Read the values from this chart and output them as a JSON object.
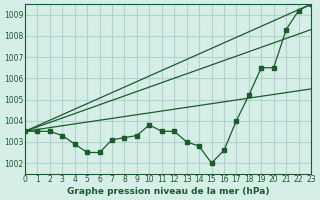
{
  "background_color": "#d6eee8",
  "grid_color": "#b0d4cc",
  "line_color": "#1a5c2a",
  "title": "Graphe pression niveau de la mer (hPa)",
  "xlim": [
    0,
    23
  ],
  "ylim": [
    1001.5,
    1009.5
  ],
  "yticks": [
    1002,
    1003,
    1004,
    1005,
    1006,
    1007,
    1008,
    1009
  ],
  "xticks": [
    0,
    1,
    2,
    3,
    4,
    5,
    6,
    7,
    8,
    9,
    10,
    11,
    12,
    13,
    14,
    15,
    16,
    17,
    18,
    19,
    20,
    21,
    22,
    23
  ],
  "line1_x": [
    0,
    1,
    2,
    3,
    4,
    5,
    6,
    7,
    8,
    9,
    10,
    11,
    12,
    13,
    14,
    15,
    16,
    17,
    18,
    19,
    20,
    21,
    22,
    23
  ],
  "line1_y": [
    1003.5,
    1003.5,
    1003.5,
    1003.3,
    1002.9,
    1002.5,
    1002.5,
    1003.1,
    1003.2,
    1003.3,
    1003.8,
    1003.5,
    1003.5,
    1003.0,
    1002.8,
    1002.0,
    1002.6,
    1004.0,
    1005.2,
    1006.5,
    1006.5,
    1008.3,
    1009.2,
    1009.5
  ],
  "line2_x": [
    0,
    23
  ],
  "line2_y": [
    1003.5,
    1009.5
  ],
  "line3_x": [
    0,
    23
  ],
  "line3_y": [
    1003.5,
    1008.3
  ],
  "line4_x": [
    0,
    23
  ],
  "line4_y": [
    1003.5,
    1005.5
  ]
}
